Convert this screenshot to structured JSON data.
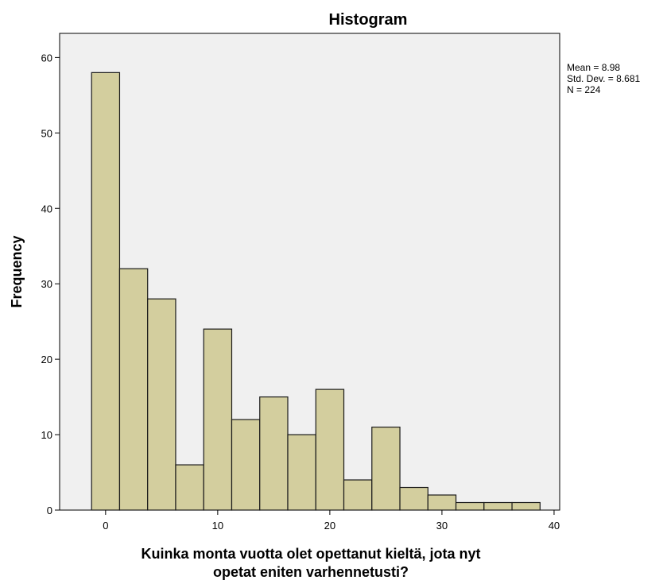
{
  "chart_data": {
    "type": "bar",
    "title": "Histogram",
    "xlabel_line1": "Kuinka monta vuotta olet opettanut kieltä, jota nyt",
    "xlabel_line2": "opetat eniten varhennetusti?",
    "ylabel": "Frequency",
    "bin_width": 2.5,
    "bin_start": -1.25,
    "values": [
      58,
      32,
      28,
      6,
      24,
      12,
      15,
      10,
      16,
      4,
      11,
      3,
      2,
      1,
      1,
      1
    ],
    "xlim": [
      -4.1,
      40.5
    ],
    "ylim": [
      0,
      63.2
    ],
    "xticks": [
      0,
      10,
      20,
      30,
      40
    ],
    "yticks": [
      0,
      10,
      20,
      30,
      40,
      50,
      60
    ],
    "grid": false,
    "stats": {
      "mean": "Mean = 8.98",
      "std": "Std. Dev. = 8.681",
      "n": "N = 224"
    }
  },
  "colors": {
    "bar_fill": "#d3ce9e",
    "bar_stroke": "#1a1a1a",
    "plot_bg": "#f0f0f0"
  }
}
